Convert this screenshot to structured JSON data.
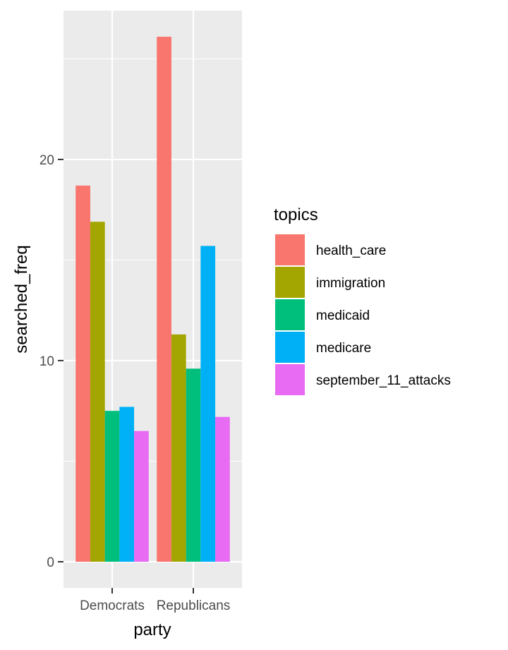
{
  "chart_data": {
    "type": "bar",
    "title": "",
    "xlabel": "party",
    "ylabel": "searched_freq",
    "categories": [
      "Democrats",
      "Republicans"
    ],
    "series": [
      {
        "name": "health_care",
        "color": "#F8766D",
        "values": [
          18.7,
          26.1
        ]
      },
      {
        "name": "immigration",
        "color": "#A3A500",
        "values": [
          16.9,
          11.3
        ]
      },
      {
        "name": "medicaid",
        "color": "#00BF7D",
        "values": [
          7.5,
          9.6
        ]
      },
      {
        "name": "medicare",
        "color": "#00B0F6",
        "values": [
          7.7,
          15.7
        ]
      },
      {
        "name": "september_11_attacks",
        "color": "#E76BF3",
        "values": [
          6.5,
          7.2
        ]
      }
    ],
    "ylim": [
      -1.3,
      27.4
    ],
    "yticks": [
      0,
      10,
      20
    ],
    "grid": true,
    "legend_title": "topics",
    "legend_position": "right",
    "panel_background": "#EBEBEB"
  }
}
